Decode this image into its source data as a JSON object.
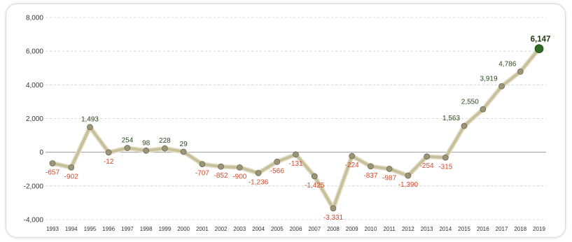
{
  "chart_data": {
    "type": "line",
    "title": "",
    "xlabel": "",
    "ylabel": "",
    "x": [
      "1993",
      "1994",
      "1995",
      "1996",
      "1997",
      "1998",
      "1999",
      "2000",
      "2001",
      "2002",
      "2003",
      "2004",
      "2005",
      "2006",
      "2007",
      "2008",
      "2009",
      "2010",
      "2011",
      "2012",
      "2013",
      "2014",
      "2015",
      "2016",
      "2017",
      "2018",
      "2019"
    ],
    "series": [
      {
        "values": [
          -657,
          -902,
          1493,
          -12,
          254,
          98,
          228,
          29,
          -707,
          -852,
          -900,
          -1236,
          -566,
          -131,
          -1425,
          -3331,
          -224,
          -837,
          -987,
          -1390,
          -254,
          -315,
          1563,
          2550,
          3919,
          4786,
          6147
        ],
        "labels": [
          "-657",
          "-902",
          "1,493",
          "-12",
          "254",
          "98",
          "228",
          "29",
          "-707",
          "-852",
          "-900",
          "-1,236",
          "-566",
          "-131",
          "-1,425",
          "-3,331",
          "-224",
          "-837",
          "-987",
          "-1,390",
          "-254",
          "-315",
          "1,563",
          "2,550",
          "3,919",
          "4,786",
          "6,147"
        ]
      }
    ],
    "ylim": [
      -4000,
      8000
    ],
    "yticks": [
      8000,
      6000,
      4000,
      2000,
      0,
      -2000,
      -4000
    ],
    "ytick_labels": [
      "8,000",
      "6,000",
      "4,000",
      "2,000",
      "0",
      "-2,000",
      "-4,000"
    ],
    "grid": true,
    "legend": "none",
    "colors": {
      "line": "#c8c09a",
      "marker": "#9a9478",
      "last_marker": "#2f6b21",
      "positive_label": "#2c4a1e",
      "negative_label": "#d34a2a",
      "grid": "#cccccc",
      "zero_line": "#9a9a9a"
    }
  }
}
